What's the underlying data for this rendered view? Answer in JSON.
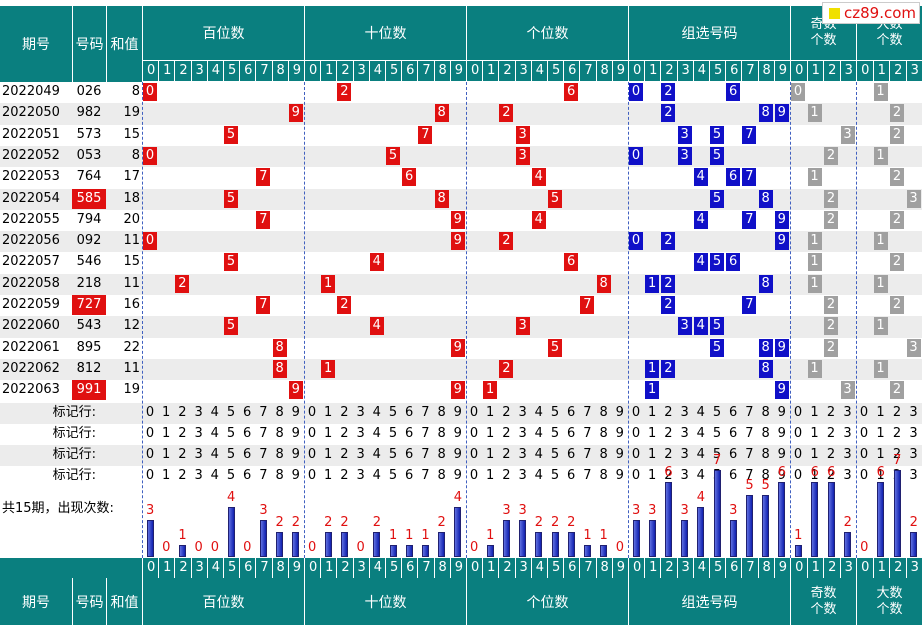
{
  "header": {
    "period": "期号",
    "number": "号码",
    "sum": "和值",
    "groups": [
      "百位数",
      "十位数",
      "个位数",
      "组选号码",
      "奇数\n个数",
      "大数\n个数"
    ]
  },
  "site_logo": "cz89.com",
  "digit_headers": [
    [
      "0",
      "1",
      "2",
      "3",
      "4",
      "5",
      "6",
      "7",
      "8",
      "9"
    ],
    [
      "0",
      "1",
      "2",
      "3",
      "4",
      "5",
      "6",
      "7",
      "8",
      "9"
    ],
    [
      "0",
      "1",
      "2",
      "3",
      "4",
      "5",
      "6",
      "7",
      "8",
      "9"
    ],
    [
      "0",
      "1",
      "2",
      "3",
      "4",
      "5",
      "6",
      "7",
      "8",
      "9"
    ],
    [
      "0",
      "1",
      "2",
      "3"
    ],
    [
      "0",
      "1",
      "2",
      "3"
    ]
  ],
  "rows": [
    {
      "period": "2022049",
      "number": "026",
      "sum": "8",
      "highlight": false
    },
    {
      "period": "2022050",
      "number": "982",
      "sum": "19",
      "highlight": false
    },
    {
      "period": "2022051",
      "number": "573",
      "sum": "15",
      "highlight": false
    },
    {
      "period": "2022052",
      "number": "053",
      "sum": "8",
      "highlight": false
    },
    {
      "period": "2022053",
      "number": "764",
      "sum": "17",
      "highlight": false
    },
    {
      "period": "2022054",
      "number": "585",
      "sum": "18",
      "highlight": true
    },
    {
      "period": "2022055",
      "number": "794",
      "sum": "20",
      "highlight": false
    },
    {
      "period": "2022056",
      "number": "092",
      "sum": "11",
      "highlight": false
    },
    {
      "period": "2022057",
      "number": "546",
      "sum": "15",
      "highlight": false
    },
    {
      "period": "2022058",
      "number": "218",
      "sum": "11",
      "highlight": false
    },
    {
      "period": "2022059",
      "number": "727",
      "sum": "16",
      "highlight": true
    },
    {
      "period": "2022060",
      "number": "543",
      "sum": "12",
      "highlight": false
    },
    {
      "period": "2022061",
      "number": "895",
      "sum": "22",
      "highlight": false
    },
    {
      "period": "2022062",
      "number": "812",
      "sum": "11",
      "highlight": false
    },
    {
      "period": "2022063",
      "number": "991",
      "sum": "19",
      "highlight": true
    }
  ],
  "marker_label": "标记行:",
  "marker_digits": {
    "ten": [
      "0",
      "1",
      "2",
      "3",
      "4",
      "5",
      "6",
      "7",
      "8",
      "9"
    ],
    "four": [
      "0",
      "1",
      "2",
      "3"
    ]
  },
  "stats_label": "共15期，出现次数:",
  "colors": {
    "teal": "#0a7f7f",
    "red": "#e01010",
    "blue": "#1010c8",
    "gray": "#a0a0a0",
    "zebra": "#ececec"
  },
  "chart_data": {
    "type": "bar",
    "title": "共15期，出现次数",
    "groups": [
      {
        "name": "百位数",
        "categories": [
          "0",
          "1",
          "2",
          "3",
          "4",
          "5",
          "6",
          "7",
          "8",
          "9"
        ],
        "values": [
          3,
          0,
          1,
          0,
          0,
          4,
          0,
          3,
          2,
          2
        ]
      },
      {
        "name": "十位数",
        "categories": [
          "0",
          "1",
          "2",
          "3",
          "4",
          "5",
          "6",
          "7",
          "8",
          "9"
        ],
        "values": [
          0,
          2,
          2,
          0,
          2,
          1,
          1,
          1,
          2,
          4
        ]
      },
      {
        "name": "个位数",
        "categories": [
          "0",
          "1",
          "2",
          "3",
          "4",
          "5",
          "6",
          "7",
          "8",
          "9"
        ],
        "values": [
          0,
          1,
          3,
          3,
          2,
          2,
          2,
          1,
          1,
          0
        ]
      },
      {
        "name": "组选号码",
        "categories": [
          "0",
          "1",
          "2",
          "3",
          "4",
          "5",
          "6",
          "7",
          "8",
          "9"
        ],
        "values": [
          3,
          3,
          6,
          3,
          4,
          7,
          3,
          5,
          5,
          6
        ]
      },
      {
        "name": "奇数个数",
        "categories": [
          "0",
          "1",
          "2",
          "3"
        ],
        "values": [
          1,
          6,
          6,
          2
        ]
      },
      {
        "name": "大数个数",
        "categories": [
          "0",
          "1",
          "2",
          "3"
        ],
        "values": [
          0,
          6,
          7,
          2
        ]
      }
    ]
  }
}
